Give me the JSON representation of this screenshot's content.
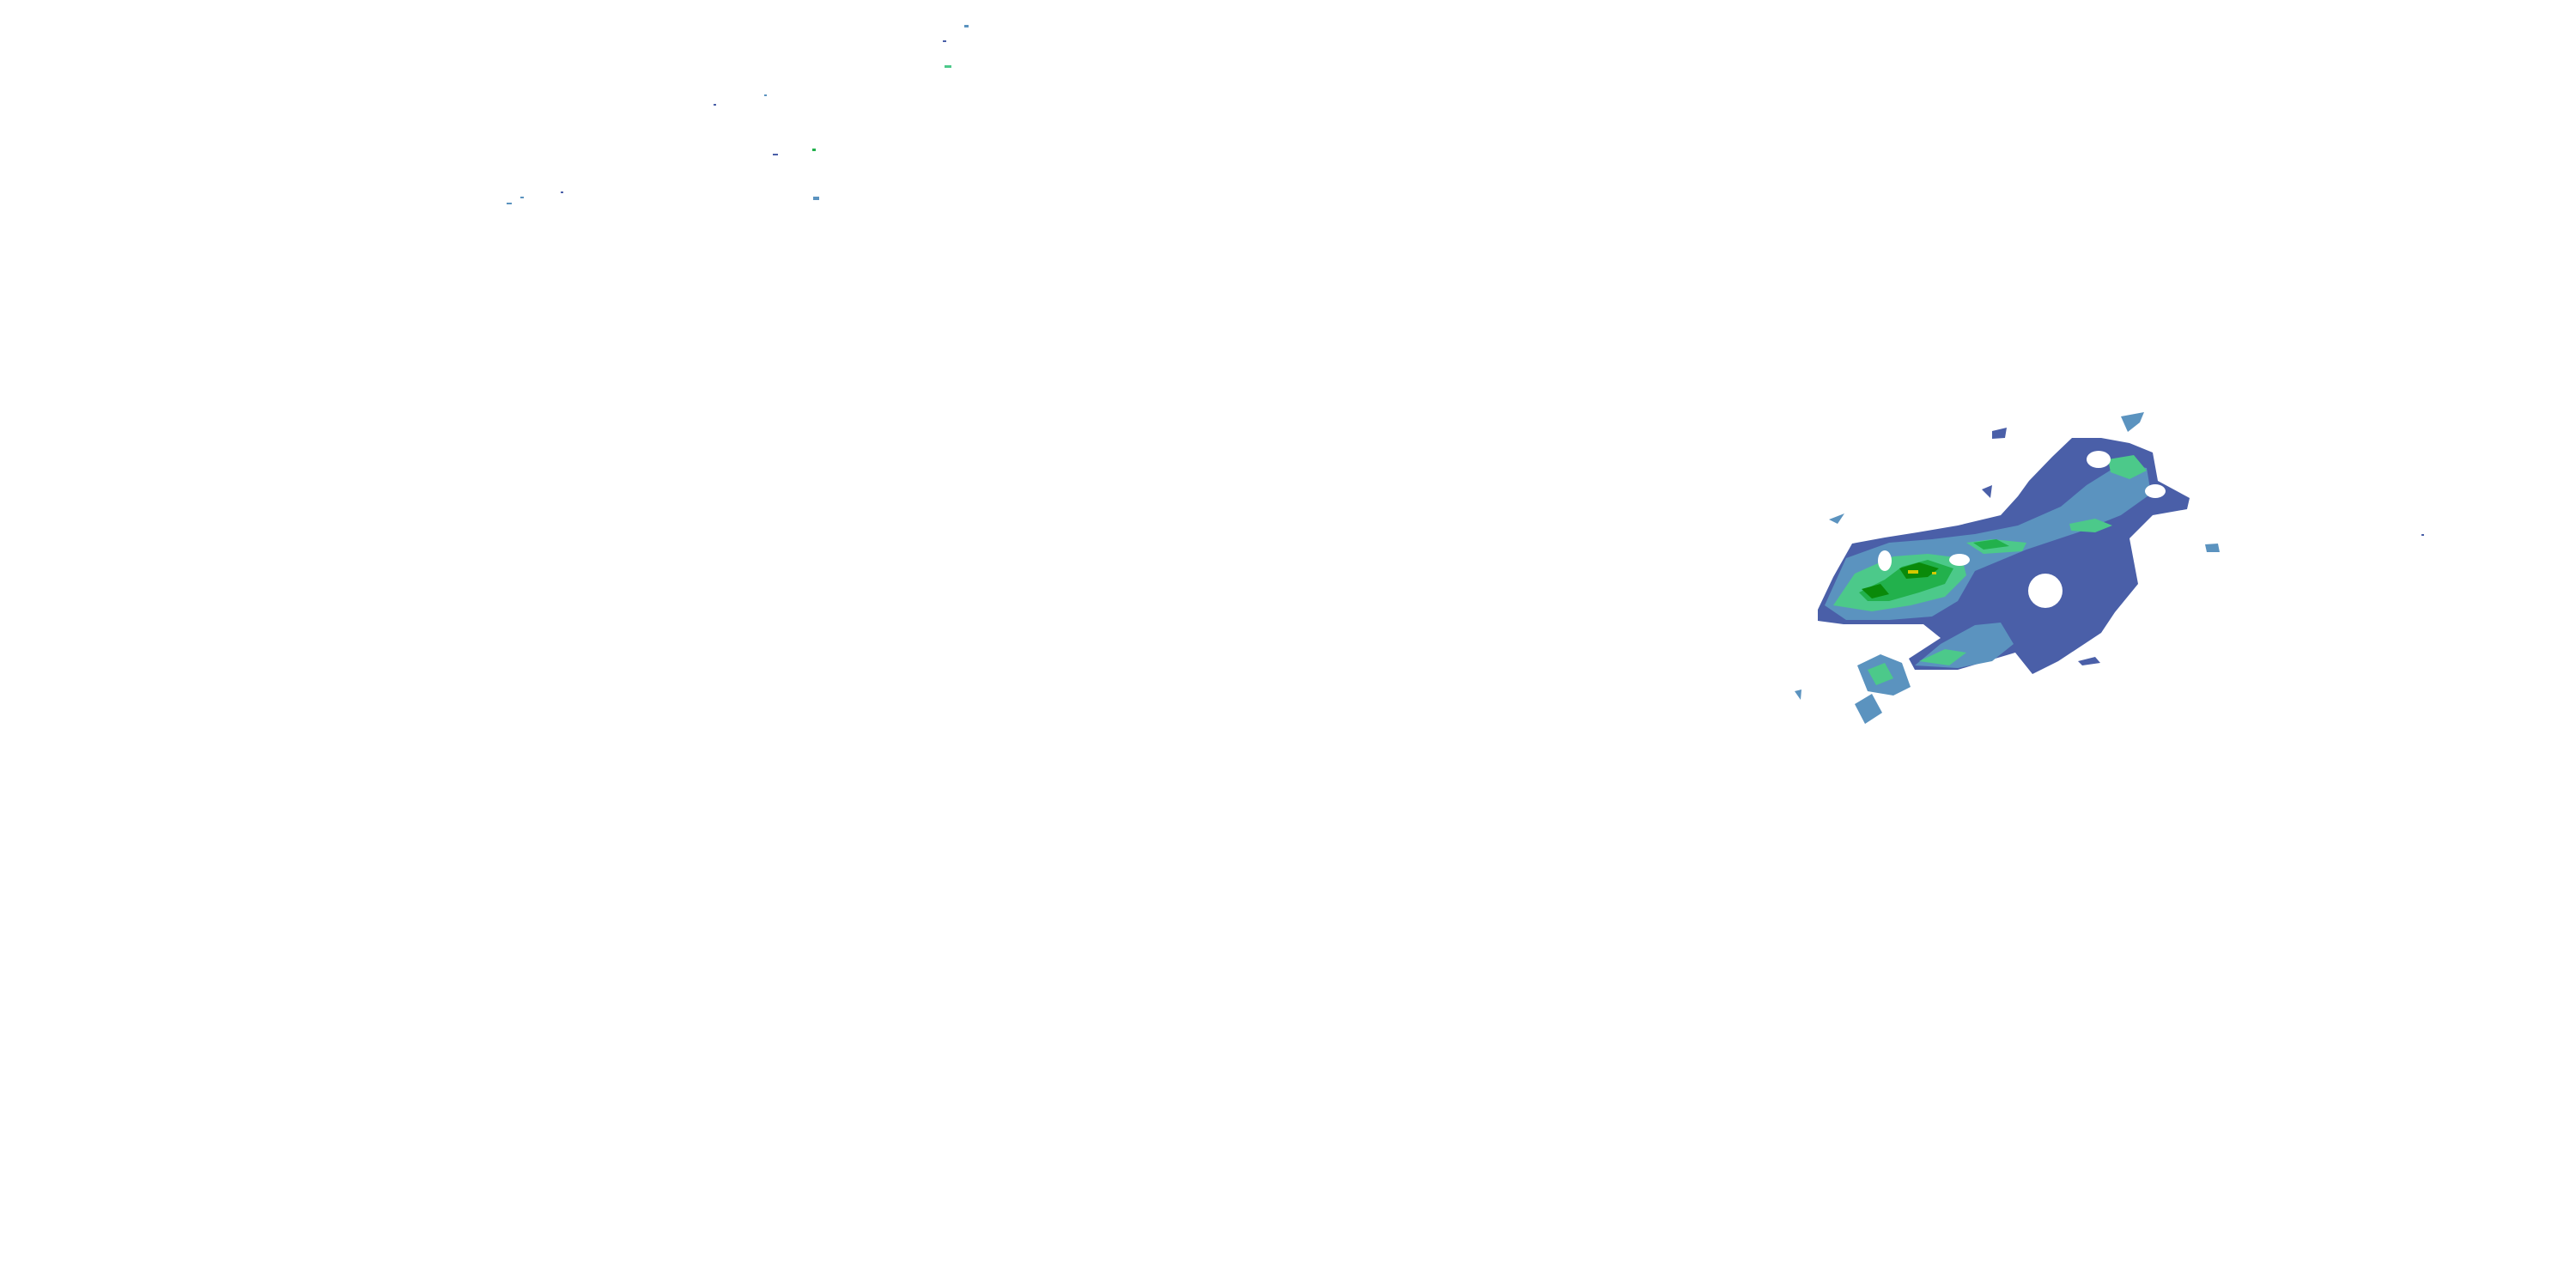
{
  "map": {
    "layer": "radar-reflectivity",
    "background": "#ffffff",
    "colors": {
      "light": "#4a5fa8",
      "light_moderate": "#5b93bf",
      "moderate": "#4cc98a",
      "heavy": "#22b14c",
      "very_heavy": "#0a8a0a",
      "intense": "#d4c800"
    }
  }
}
